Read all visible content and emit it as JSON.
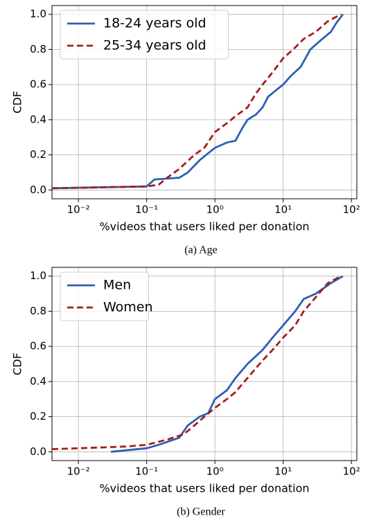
{
  "chart_data": [
    {
      "type": "line",
      "xlabel": "%videos that users liked per donation",
      "ylabel": "CDF",
      "caption": "(a) Age",
      "xscale": "log",
      "xlim": [
        0.0041,
        120
      ],
      "ylim": [
        -0.05,
        1.05
      ],
      "grid": true,
      "legend": "upper left",
      "xticks": [
        {
          "value": 0.01,
          "label": "10⁻²"
        },
        {
          "value": 0.1,
          "label": "10⁻¹"
        },
        {
          "value": 1,
          "label": "10⁰"
        },
        {
          "value": 10,
          "label": "10¹"
        },
        {
          "value": 100,
          "label": "10²"
        }
      ],
      "yticks": [
        {
          "value": 0,
          "label": "0.0"
        },
        0.2,
        0.4,
        0.6,
        0.8,
        {
          "value": 1,
          "label": "1.0"
        }
      ],
      "series": [
        {
          "name": "18-24 years old",
          "color": "#2b5fb4",
          "linestyle": "solid",
          "x": [
            0.0041,
            0.1,
            0.13,
            0.3,
            0.4,
            0.6,
            1,
            1.5,
            2,
            2.5,
            3,
            4,
            5,
            6,
            8,
            10,
            13,
            18,
            25,
            35,
            50,
            60,
            75
          ],
          "values": [
            0.01,
            0.02,
            0.06,
            0.07,
            0.1,
            0.17,
            0.24,
            0.27,
            0.28,
            0.35,
            0.4,
            0.43,
            0.47,
            0.53,
            0.57,
            0.6,
            0.65,
            0.7,
            0.8,
            0.85,
            0.9,
            0.95,
            1.0
          ]
        },
        {
          "name": "25-34 years old",
          "color": "#a61c1c",
          "linestyle": "dashed",
          "x": [
            0.0041,
            0.1,
            0.15,
            0.2,
            0.3,
            0.5,
            0.7,
            1,
            1.5,
            2,
            3,
            4,
            5,
            7,
            10,
            14,
            20,
            30,
            45,
            70
          ],
          "values": [
            0.01,
            0.02,
            0.03,
            0.07,
            0.12,
            0.2,
            0.24,
            0.33,
            0.38,
            0.42,
            0.47,
            0.55,
            0.6,
            0.67,
            0.75,
            0.8,
            0.86,
            0.9,
            0.96,
            1.0
          ]
        }
      ]
    },
    {
      "type": "line",
      "xlabel": "%videos that users liked per donation",
      "ylabel": "CDF",
      "caption": "(b) Gender",
      "xscale": "log",
      "xlim": [
        0.0041,
        120
      ],
      "ylim": [
        -0.05,
        1.05
      ],
      "grid": true,
      "legend": "upper left",
      "xticks": [
        {
          "value": 0.01,
          "label": "10⁻²"
        },
        {
          "value": 0.1,
          "label": "10⁻¹"
        },
        {
          "value": 1,
          "label": "10⁰"
        },
        {
          "value": 10,
          "label": "10¹"
        },
        {
          "value": 100,
          "label": "10²"
        }
      ],
      "yticks": [
        {
          "value": 0,
          "label": "0.0"
        },
        0.2,
        0.4,
        0.6,
        0.8,
        {
          "value": 1,
          "label": "1.0"
        }
      ],
      "series": [
        {
          "name": "Men",
          "color": "#2b5fb4",
          "linestyle": "solid",
          "x": [
            0.03,
            0.1,
            0.15,
            0.3,
            0.4,
            0.6,
            0.8,
            1,
            1.5,
            2,
            3,
            5,
            7,
            10,
            15,
            20,
            30,
            50,
            75
          ],
          "values": [
            0.0,
            0.02,
            0.04,
            0.08,
            0.15,
            0.2,
            0.22,
            0.3,
            0.35,
            0.42,
            0.5,
            0.58,
            0.65,
            0.72,
            0.8,
            0.87,
            0.9,
            0.96,
            1.0
          ]
        },
        {
          "name": "Women",
          "color": "#a61c1c",
          "linestyle": "dashed",
          "x": [
            0.0041,
            0.01,
            0.05,
            0.1,
            0.2,
            0.35,
            0.5,
            0.7,
            1,
            1.5,
            2,
            3,
            5,
            7,
            10,
            15,
            20,
            30,
            45,
            70
          ],
          "values": [
            0.015,
            0.02,
            0.03,
            0.04,
            0.07,
            0.1,
            0.15,
            0.2,
            0.25,
            0.3,
            0.34,
            0.42,
            0.52,
            0.58,
            0.65,
            0.72,
            0.8,
            0.88,
            0.96,
            1.0
          ]
        }
      ]
    }
  ]
}
